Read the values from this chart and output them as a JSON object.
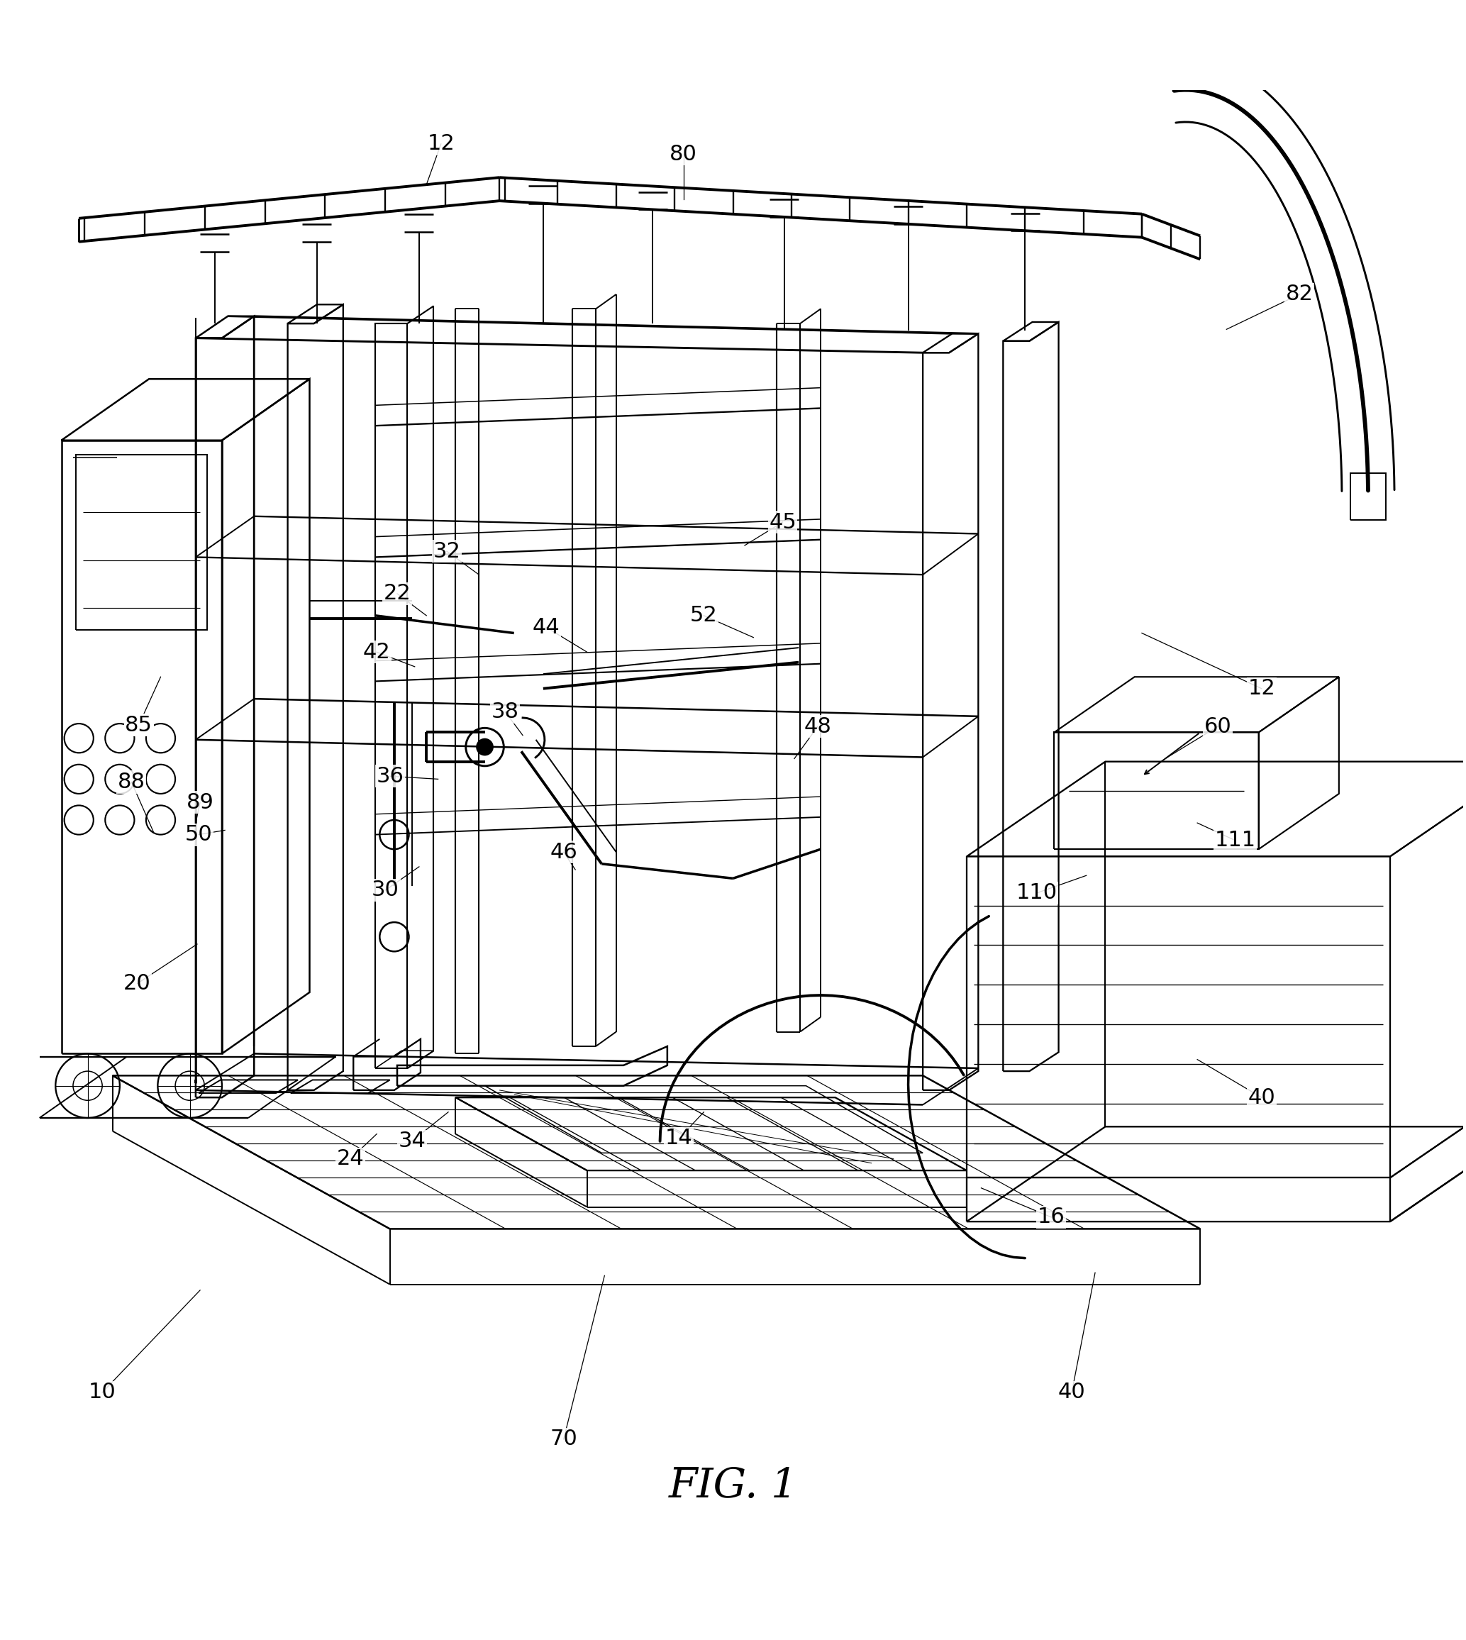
{
  "bg_color": "#ffffff",
  "line_color": "#000000",
  "fig_label": "FIG. 1",
  "title_fontsize": 42,
  "label_fontsize": 22,
  "lw": 1.4,
  "labels": {
    "10": [
      0.068,
      0.108,
      0.135,
      0.178
    ],
    "12a": [
      0.3,
      0.963,
      0.29,
      0.935
    ],
    "12b": [
      0.862,
      0.59,
      0.78,
      0.628
    ],
    "14": [
      0.463,
      0.282,
      0.48,
      0.3
    ],
    "16": [
      0.718,
      0.228,
      0.67,
      0.248
    ],
    "20": [
      0.092,
      0.388,
      0.133,
      0.415
    ],
    "22": [
      0.27,
      0.655,
      0.29,
      0.64
    ],
    "24": [
      0.238,
      0.268,
      0.256,
      0.285
    ],
    "30": [
      0.262,
      0.452,
      0.285,
      0.468
    ],
    "32": [
      0.304,
      0.684,
      0.326,
      0.668
    ],
    "34": [
      0.28,
      0.28,
      0.305,
      0.3
    ],
    "36": [
      0.265,
      0.53,
      0.298,
      0.528
    ],
    "38": [
      0.344,
      0.574,
      0.356,
      0.558
    ],
    "40a": [
      0.862,
      0.31,
      0.818,
      0.336
    ],
    "40b": [
      0.732,
      0.108,
      0.748,
      0.19
    ],
    "42": [
      0.256,
      0.615,
      0.282,
      0.605
    ],
    "44": [
      0.372,
      0.632,
      0.4,
      0.615
    ],
    "45": [
      0.534,
      0.704,
      0.508,
      0.688
    ],
    "46": [
      0.384,
      0.478,
      0.392,
      0.466
    ],
    "48": [
      0.558,
      0.564,
      0.542,
      0.542
    ],
    "50": [
      0.134,
      0.49,
      0.152,
      0.493
    ],
    "52": [
      0.48,
      0.64,
      0.514,
      0.625
    ],
    "60": [
      0.832,
      0.564,
      0.796,
      0.542
    ],
    "70": [
      0.384,
      0.076,
      0.412,
      0.188
    ],
    "80": [
      0.466,
      0.956,
      0.466,
      0.925
    ],
    "82": [
      0.888,
      0.86,
      0.838,
      0.836
    ],
    "85": [
      0.093,
      0.565,
      0.108,
      0.598
    ],
    "88": [
      0.088,
      0.526,
      0.103,
      0.492
    ],
    "89": [
      0.135,
      0.512,
      0.132,
      0.498
    ],
    "110": [
      0.708,
      0.45,
      0.742,
      0.462
    ],
    "111": [
      0.844,
      0.486,
      0.818,
      0.498
    ]
  },
  "label_overrides": {
    "12a": "12",
    "12b": "12",
    "40a": "40",
    "40b": "40",
    "85": "85",
    "88": "88",
    "89": "89"
  }
}
